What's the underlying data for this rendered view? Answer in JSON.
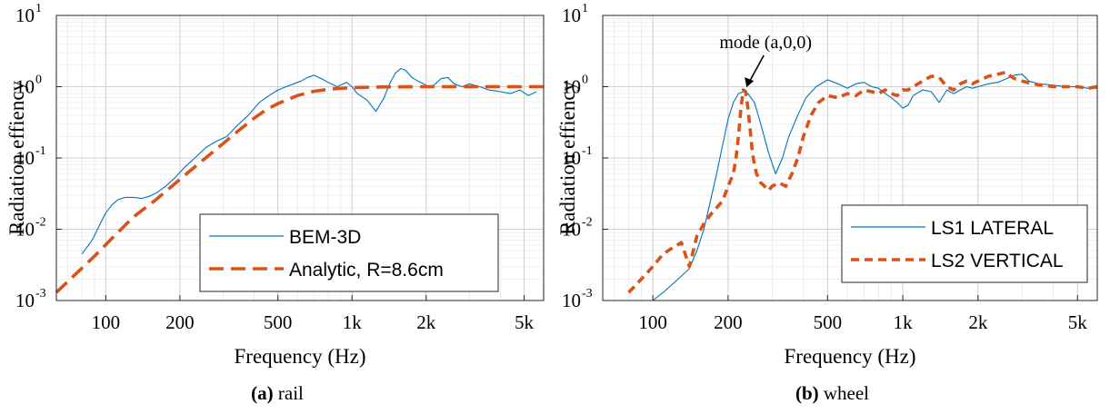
{
  "charts": [
    {
      "caption": {
        "label": "(a)",
        "text": "rail"
      },
      "chart_data": {
        "type": "line",
        "title": "",
        "xlabel": "Frequency (Hz)",
        "ylabel": "Radiation effiency",
        "xscale": "log",
        "yscale": "log",
        "xlim": [
          63,
          6000
        ],
        "ylim": [
          0.001,
          10
        ],
        "xticks": [
          100,
          200,
          500,
          1000,
          2000,
          5000
        ],
        "xticklabels": [
          "100",
          "200",
          "500",
          "1k",
          "2k",
          "5k"
        ],
        "yticks": [
          0.001,
          0.01,
          0.1,
          1,
          10
        ],
        "yticklabels": [
          [
            "10",
            "-3"
          ],
          [
            "10",
            "-2"
          ],
          [
            "10",
            "-1"
          ],
          [
            "10",
            "0"
          ],
          [
            "10",
            "1"
          ]
        ],
        "grid": true,
        "legend_position": "lower-right",
        "annotations": [],
        "series": [
          {
            "name": "BEM-3D",
            "color": "#0072BD",
            "dash": "solid",
            "x": [
              80,
              88,
              95,
              100,
              106,
              112,
              120,
              130,
              140,
              150,
              160,
              175,
              190,
              210,
              230,
              255,
              280,
              310,
              340,
              380,
              420,
              460,
              500,
              540,
              580,
              620,
              660,
              700,
              750,
              800,
              870,
              950,
              1000,
              1050,
              1150,
              1250,
              1350,
              1420,
              1500,
              1580,
              1650,
              1750,
              1850,
              1950,
              2050,
              2150,
              2300,
              2450,
              2600,
              2800,
              3000,
              3300,
              3600,
              4000,
              4400,
              4800,
              5200,
              5600
            ],
            "y": [
              0.0045,
              0.007,
              0.012,
              0.017,
              0.022,
              0.026,
              0.028,
              0.028,
              0.027,
              0.029,
              0.032,
              0.04,
              0.052,
              0.075,
              0.1,
              0.14,
              0.17,
              0.2,
              0.28,
              0.4,
              0.6,
              0.75,
              0.9,
              1.0,
              1.1,
              1.2,
              1.35,
              1.45,
              1.3,
              1.15,
              1.0,
              1.15,
              1.0,
              0.8,
              0.65,
              0.45,
              0.7,
              1.1,
              1.55,
              1.8,
              1.7,
              1.35,
              1.2,
              1.1,
              1.0,
              1.05,
              1.3,
              1.35,
              1.1,
              1.0,
              1.1,
              1.0,
              0.9,
              0.85,
              0.8,
              0.9,
              0.75,
              0.85
            ]
          },
          {
            "name": "Analytic, R=8.6cm",
            "color": "#D95319",
            "dash": "dashed",
            "x": [
              63,
              75,
              90,
              110,
              130,
              160,
              200,
              250,
              300,
              350,
              400,
              450,
              500,
              600,
              700,
              800,
              1000,
              1300,
              1800,
              2500,
              3500,
              5000,
              6000
            ],
            "y": [
              0.0013,
              0.0023,
              0.0042,
              0.0085,
              0.015,
              0.026,
              0.05,
              0.095,
              0.16,
              0.25,
              0.36,
              0.48,
              0.58,
              0.75,
              0.86,
              0.92,
              0.97,
              0.99,
              1.0,
              1.0,
              1.0,
              1.0,
              1.0
            ]
          }
        ]
      }
    },
    {
      "caption": {
        "label": "(b)",
        "text": "wheel"
      },
      "chart_data": {
        "type": "line",
        "title": "",
        "xlabel": "Frequency (Hz)",
        "ylabel": "Radiation effiency",
        "xscale": "log",
        "yscale": "log",
        "xlim": [
          63,
          6000
        ],
        "ylim": [
          0.001,
          10
        ],
        "xticks": [
          100,
          200,
          500,
          1000,
          2000,
          5000
        ],
        "xticklabels": [
          "100",
          "200",
          "500",
          "1k",
          "2k",
          "5k"
        ],
        "yticks": [
          0.001,
          0.01,
          0.1,
          1,
          10
        ],
        "yticklabels": [
          [
            "10",
            "-3"
          ],
          [
            "10",
            "-2"
          ],
          [
            "10",
            "-1"
          ],
          [
            "10",
            "0"
          ],
          [
            "10",
            "1"
          ]
        ],
        "grid": true,
        "legend_position": "lower-right",
        "annotations": [
          {
            "text": "mode (a,0,0)",
            "x": 235,
            "y": 0.9
          }
        ],
        "series": [
          {
            "name": "LS1 LATERAL",
            "color": "#0072BD",
            "dash": "solid",
            "x": [
              100,
              110,
              120,
              130,
              140,
              150,
              160,
              170,
              180,
              190,
              200,
              210,
              220,
              230,
              240,
              255,
              270,
              290,
              310,
              330,
              350,
              380,
              410,
              450,
              500,
              550,
              600,
              650,
              700,
              750,
              800,
              850,
              900,
              950,
              1000,
              1050,
              1100,
              1200,
              1300,
              1400,
              1500,
              1600,
              1700,
              1800,
              1900,
              2000,
              2200,
              2400,
              2600,
              2800,
              3000,
              3200,
              3500,
              4000,
              4500,
              5000,
              5500,
              6000
            ],
            "y": [
              0.001,
              0.0013,
              0.0017,
              0.0022,
              0.0028,
              0.005,
              0.01,
              0.025,
              0.06,
              0.15,
              0.35,
              0.6,
              0.8,
              0.85,
              0.8,
              0.6,
              0.3,
              0.12,
              0.06,
              0.1,
              0.2,
              0.4,
              0.7,
              1.0,
              1.25,
              1.1,
              0.95,
              1.1,
              1.15,
              1.0,
              0.95,
              0.8,
              0.7,
              0.6,
              0.5,
              0.55,
              0.75,
              0.9,
              0.85,
              0.6,
              0.9,
              0.8,
              0.9,
              1.0,
              0.95,
              1.0,
              1.1,
              1.15,
              1.3,
              1.45,
              1.5,
              1.2,
              1.1,
              1.05,
              1.0,
              1.0,
              0.95,
              0.95
            ]
          },
          {
            "name": "LS2 VERTICAL",
            "color": "#D95319",
            "dash": "dashed",
            "x": [
              80,
              90,
              100,
              110,
              120,
              130,
              140,
              150,
              160,
              170,
              180,
              190,
              200,
              210,
              215,
              220,
              225,
              230,
              235,
              240,
              245,
              250,
              255,
              260,
              270,
              280,
              290,
              300,
              320,
              340,
              360,
              380,
              400,
              430,
              460,
              500,
              550,
              600,
              650,
              700,
              750,
              800,
              850,
              900,
              950,
              1000,
              1050,
              1100,
              1200,
              1300,
              1400,
              1500,
              1600,
              1700,
              1800,
              1900,
              2000,
              2200,
              2400,
              2600,
              2700,
              2800,
              3000,
              3300,
              3600,
              4000,
              4500,
              5000,
              5500,
              6000
            ],
            "y": [
              0.0013,
              0.002,
              0.003,
              0.0045,
              0.0055,
              0.0065,
              0.003,
              0.008,
              0.012,
              0.016,
              0.02,
              0.025,
              0.04,
              0.06,
              0.1,
              0.2,
              0.5,
              0.9,
              0.85,
              0.5,
              0.25,
              0.12,
              0.08,
              0.06,
              0.045,
              0.04,
              0.035,
              0.04,
              0.045,
              0.04,
              0.06,
              0.1,
              0.2,
              0.4,
              0.6,
              0.75,
              0.7,
              0.8,
              0.75,
              0.9,
              0.85,
              0.8,
              0.9,
              0.8,
              0.75,
              0.9,
              0.9,
              1.0,
              1.2,
              1.4,
              1.35,
              1.0,
              0.9,
              1.1,
              1.2,
              1.1,
              1.2,
              1.4,
              1.5,
              1.6,
              1.4,
              1.3,
              1.2,
              1.1,
              1.05,
              1.0,
              1.0,
              1.0,
              0.95,
              1.0
            ]
          }
        ]
      }
    }
  ]
}
